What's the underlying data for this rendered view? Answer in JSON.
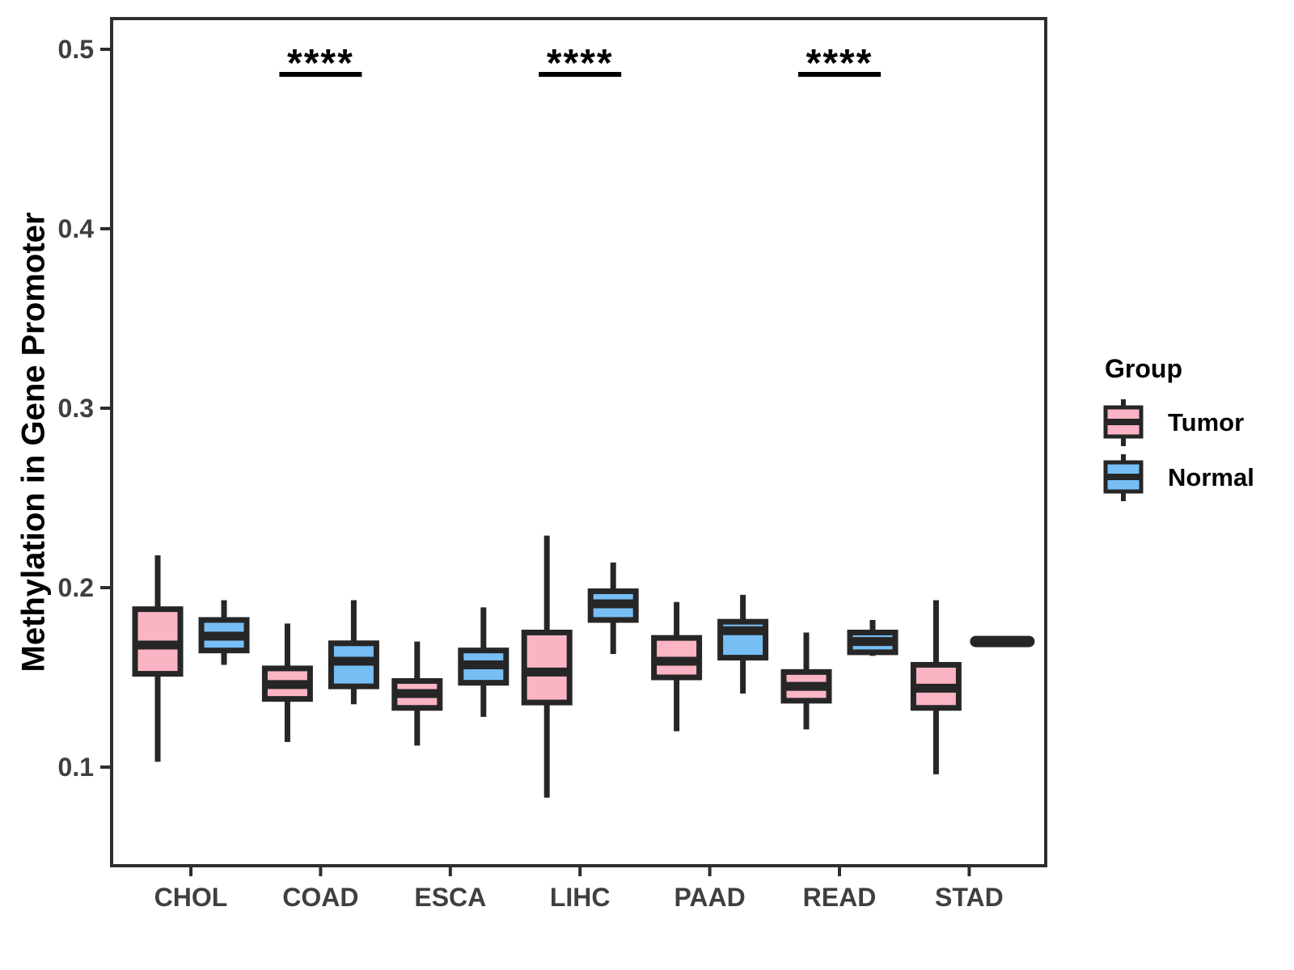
{
  "chart_data": {
    "type": "boxplot",
    "title": "",
    "xlabel": "",
    "ylabel": "Methylation in Gene Promoter",
    "categories": [
      "CHOL",
      "COAD",
      "ESCA",
      "LIHC",
      "PAAD",
      "READ",
      "STAD"
    ],
    "y_ticks": [
      0.1,
      0.2,
      0.3,
      0.4,
      0.5
    ],
    "ylim": [
      0.045,
      0.517
    ],
    "grid": false,
    "legend_position": "right",
    "colors": {
      "tumor_fill": "#FBB4C3",
      "normal_fill": "#76BEF4",
      "box_border": "#262626",
      "axis_text": "#3F3F3F",
      "panel_border": "#2E2E2E"
    },
    "series": [
      {
        "name": "Tumor",
        "color": "#FBB4C3",
        "boxes": [
          {
            "whisker_low": 0.103,
            "q1": 0.152,
            "median": 0.168,
            "q3": 0.188,
            "whisker_high": 0.218
          },
          {
            "whisker_low": 0.114,
            "q1": 0.138,
            "median": 0.146,
            "q3": 0.155,
            "whisker_high": 0.18
          },
          {
            "whisker_low": 0.112,
            "q1": 0.133,
            "median": 0.141,
            "q3": 0.148,
            "whisker_high": 0.17
          },
          {
            "whisker_low": 0.083,
            "q1": 0.136,
            "median": 0.153,
            "q3": 0.175,
            "whisker_high": 0.229
          },
          {
            "whisker_low": 0.12,
            "q1": 0.15,
            "median": 0.159,
            "q3": 0.172,
            "whisker_high": 0.192
          },
          {
            "whisker_low": 0.121,
            "q1": 0.137,
            "median": 0.145,
            "q3": 0.153,
            "whisker_high": 0.175
          },
          {
            "whisker_low": 0.096,
            "q1": 0.133,
            "median": 0.144,
            "q3": 0.157,
            "whisker_high": 0.193
          }
        ]
      },
      {
        "name": "Normal",
        "color": "#76BEF4",
        "boxes": [
          {
            "whisker_low": 0.157,
            "q1": 0.165,
            "median": 0.173,
            "q3": 0.182,
            "whisker_high": 0.193
          },
          {
            "whisker_low": 0.135,
            "q1": 0.145,
            "median": 0.159,
            "q3": 0.169,
            "whisker_high": 0.193
          },
          {
            "whisker_low": 0.128,
            "q1": 0.147,
            "median": 0.157,
            "q3": 0.165,
            "whisker_high": 0.189
          },
          {
            "whisker_low": 0.163,
            "q1": 0.182,
            "median": 0.191,
            "q3": 0.198,
            "whisker_high": 0.214
          },
          {
            "whisker_low": 0.141,
            "q1": 0.161,
            "median": 0.176,
            "q3": 0.181,
            "whisker_high": 0.196
          },
          {
            "whisker_low": 0.162,
            "q1": 0.164,
            "median": 0.17,
            "q3": 0.175,
            "whisker_high": 0.182
          },
          {
            "whisker_low": 0.17,
            "q1": 0.17,
            "median": 0.17,
            "q3": 0.17,
            "whisker_high": 0.17,
            "degenerate": true
          }
        ]
      }
    ],
    "significance": [
      {
        "category": "COAD",
        "label": "****"
      },
      {
        "category": "LIHC",
        "label": "****"
      },
      {
        "category": "READ",
        "label": "****"
      }
    ]
  },
  "legend": {
    "title": "Group",
    "items": [
      {
        "label": "Tumor"
      },
      {
        "label": "Normal"
      }
    ]
  }
}
